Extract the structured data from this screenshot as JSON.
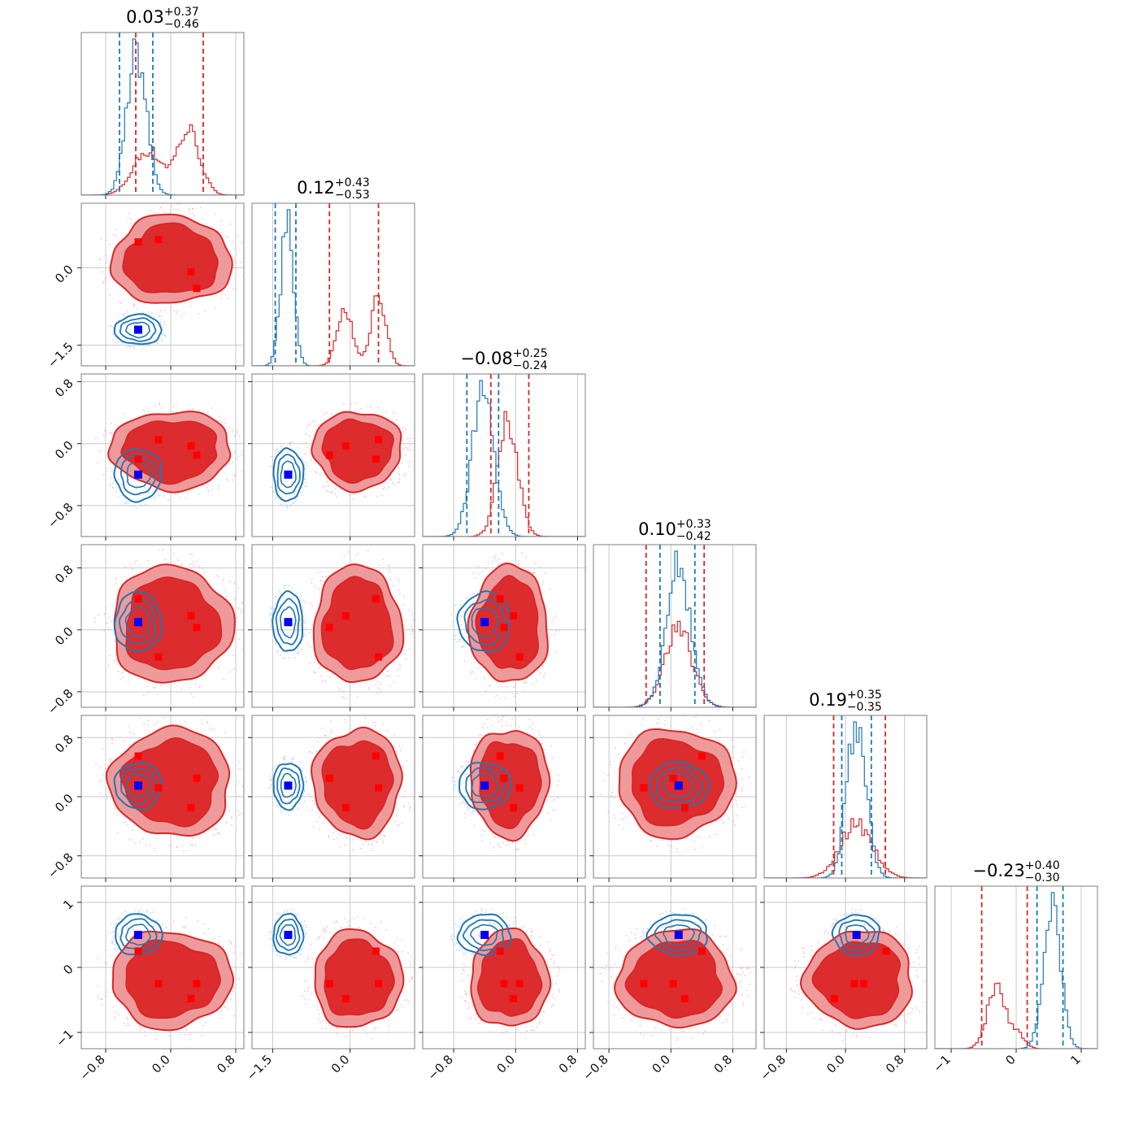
{
  "chart_data": {
    "type": "corner",
    "n_params": 6,
    "colors": {
      "red_fill_outer": "#ee9a9b",
      "red_fill_inner": "#dc2c2e",
      "red_line": "#d62728",
      "blue_line": "#1f77b4",
      "red_marker": "#ff0000",
      "blue_marker": "#0000ff"
    },
    "titles": [
      {
        "median": "0.03",
        "plus": "+0.37",
        "minus": "−0.46"
      },
      {
        "median": "0.12",
        "plus": "+0.43",
        "minus": "−0.53"
      },
      {
        "median": "−0.08",
        "plus": "+0.25",
        "minus": "−0.24"
      },
      {
        "median": "0.10",
        "plus": "+0.33",
        "minus": "−0.42"
      },
      {
        "median": "0.19",
        "plus": "+0.35",
        "minus": "−0.35"
      },
      {
        "median": "−0.23",
        "plus": "+0.40",
        "minus": "−0.30"
      }
    ],
    "ranges": [
      [
        -1.1,
        0.9
      ],
      [
        -1.9,
        1.25
      ],
      [
        -1.2,
        0.9
      ],
      [
        -1.0,
        1.1
      ],
      [
        -1.1,
        1.1
      ],
      [
        -1.25,
        1.25
      ]
    ],
    "ticks": [
      {
        "values": [
          -0.8,
          0.0,
          0.8
        ],
        "labels": [
          "−0.8",
          "0.0",
          "0.8"
        ]
      },
      {
        "values": [
          -1.5,
          0.0
        ],
        "labels": [
          "−1.5",
          "0.0"
        ]
      },
      {
        "values": [
          -0.8,
          0.0,
          0.8
        ],
        "labels": [
          "−0.8",
          "0.0",
          "0.8"
        ]
      },
      {
        "values": [
          -0.8,
          0.0,
          0.8
        ],
        "labels": [
          "−0.8",
          "0.0",
          "0.8"
        ]
      },
      {
        "values": [
          -0.8,
          0.0,
          0.8
        ],
        "labels": [
          "−0.8",
          "0.0",
          "0.8"
        ]
      },
      {
        "values": [
          -1,
          0,
          1
        ],
        "labels": [
          "−1",
          "0",
          "1"
        ]
      }
    ],
    "quantiles": {
      "red": [
        [
          -0.43,
          0.4
        ],
        [
          -0.4,
          0.55
        ],
        [
          -0.32,
          0.17
        ],
        [
          -0.32,
          0.43
        ],
        [
          -0.16,
          0.54
        ],
        [
          -0.53,
          0.17
        ]
      ],
      "blue": [
        [
          -0.63,
          -0.22
        ],
        [
          -1.45,
          -1.05
        ],
        [
          -0.63,
          -0.22
        ],
        [
          -0.14,
          0.31
        ],
        [
          -0.05,
          0.35
        ],
        [
          0.32,
          0.72
        ]
      ]
    },
    "red_markers": [
      [
        -0.4,
        -0.15,
        0.25,
        0.32
      ],
      [
        0.5,
        0.55,
        -0.08,
        -0.4
      ],
      [
        -0.2,
        0.05,
        -0.03,
        -0.15
      ],
      [
        0.4,
        -0.35,
        0.18,
        0.03
      ],
      [
        0.55,
        0.12,
        -0.15,
        0.25
      ],
      [
        0.25,
        -0.25,
        -0.48,
        -0.25
      ]
    ],
    "blue_markers": [
      -0.4,
      -1.2,
      -0.4,
      0.1,
      0.15,
      0.5
    ]
  }
}
